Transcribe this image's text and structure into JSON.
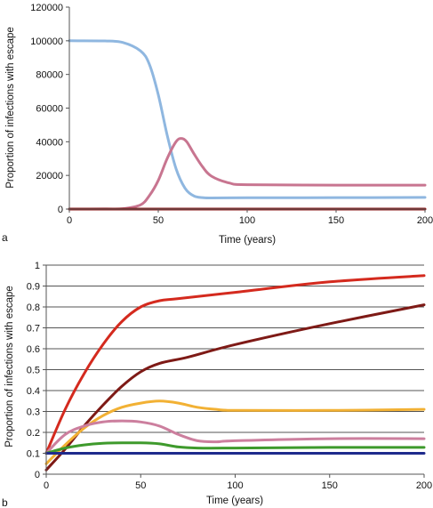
{
  "chart_data": [
    {
      "panel_label": "a",
      "type": "line",
      "xlabel": "Time (years)",
      "ylabel": "Proportion of infections with escape",
      "xlim": [
        0,
        200
      ],
      "ylim": [
        0,
        120000
      ],
      "xticks": [
        "0",
        "50",
        "100",
        "150",
        "200"
      ],
      "yticks": [
        "0",
        "20000",
        "40000",
        "60000",
        "80000",
        "100000",
        "120000"
      ],
      "grid": false,
      "series": [
        {
          "color": "#8fb7e0",
          "points": [
            [
              0,
              100000
            ],
            [
              20,
              99900
            ],
            [
              30,
              99000
            ],
            [
              40,
              94000
            ],
            [
              45,
              86000
            ],
            [
              50,
              68000
            ],
            [
              55,
              44000
            ],
            [
              60,
              24000
            ],
            [
              65,
              12500
            ],
            [
              70,
              7800
            ],
            [
              75,
              6800
            ],
            [
              80,
              6600
            ],
            [
              100,
              6700
            ],
            [
              150,
              6800
            ],
            [
              200,
              6900
            ]
          ]
        },
        {
          "color": "#c87590",
          "points": [
            [
              0,
              0
            ],
            [
              20,
              50
            ],
            [
              30,
              200
            ],
            [
              40,
              2500
            ],
            [
              45,
              8000
            ],
            [
              50,
              17000
            ],
            [
              55,
              30000
            ],
            [
              60,
              40000
            ],
            [
              63,
              42000
            ],
            [
              66,
              40000
            ],
            [
              70,
              33000
            ],
            [
              75,
              25000
            ],
            [
              80,
              19500
            ],
            [
              90,
              15500
            ],
            [
              100,
              14500
            ],
            [
              150,
              14200
            ],
            [
              200,
              14200
            ]
          ]
        },
        {
          "color": "#8b1a1a",
          "points": [
            [
              0,
              0
            ],
            [
              200,
              0
            ]
          ]
        }
      ]
    },
    {
      "panel_label": "b",
      "type": "line",
      "xlabel": "Time (years)",
      "ylabel": "Proportion of infections with escape",
      "xlim": [
        0,
        200
      ],
      "ylim": [
        0,
        1
      ],
      "xticks": [
        "0",
        "50",
        "100",
        "150",
        "200"
      ],
      "yticks": [
        "0",
        "0.1",
        "0.2",
        "0.3",
        "0.4",
        "0.5",
        "0.6",
        "0.7",
        "0.8",
        "0.9",
        "1"
      ],
      "grid": true,
      "series": [
        {
          "color": "#d42a1e",
          "points": [
            [
              0,
              0.1
            ],
            [
              10,
              0.31
            ],
            [
              20,
              0.48
            ],
            [
              30,
              0.62
            ],
            [
              40,
              0.73
            ],
            [
              50,
              0.8
            ],
            [
              60,
              0.83
            ],
            [
              70,
              0.84
            ],
            [
              100,
              0.87
            ],
            [
              150,
              0.92
            ],
            [
              200,
              0.95
            ]
          ]
        },
        {
          "color": "#7e1a16",
          "points": [
            [
              0,
              0.02
            ],
            [
              10,
              0.12
            ],
            [
              20,
              0.23
            ],
            [
              30,
              0.33
            ],
            [
              40,
              0.42
            ],
            [
              50,
              0.49
            ],
            [
              60,
              0.53
            ],
            [
              75,
              0.56
            ],
            [
              100,
              0.62
            ],
            [
              150,
              0.72
            ],
            [
              200,
              0.81
            ]
          ]
        },
        {
          "color": "#f2b134",
          "points": [
            [
              0,
              0.05
            ],
            [
              10,
              0.14
            ],
            [
              20,
              0.22
            ],
            [
              30,
              0.28
            ],
            [
              40,
              0.32
            ],
            [
              50,
              0.34
            ],
            [
              60,
              0.35
            ],
            [
              70,
              0.34
            ],
            [
              80,
              0.32
            ],
            [
              90,
              0.31
            ],
            [
              100,
              0.305
            ],
            [
              150,
              0.305
            ],
            [
              200,
              0.31
            ]
          ]
        },
        {
          "color": "#cc7f9e",
          "points": [
            [
              0,
              0.1
            ],
            [
              10,
              0.19
            ],
            [
              20,
              0.23
            ],
            [
              30,
              0.25
            ],
            [
              40,
              0.255
            ],
            [
              50,
              0.25
            ],
            [
              60,
              0.23
            ],
            [
              70,
              0.19
            ],
            [
              80,
              0.16
            ],
            [
              90,
              0.155
            ],
            [
              100,
              0.16
            ],
            [
              150,
              0.17
            ],
            [
              200,
              0.17
            ]
          ]
        },
        {
          "color": "#3e9a2c",
          "points": [
            [
              0,
              0.1
            ],
            [
              10,
              0.125
            ],
            [
              20,
              0.14
            ],
            [
              30,
              0.148
            ],
            [
              40,
              0.15
            ],
            [
              50,
              0.15
            ],
            [
              60,
              0.145
            ],
            [
              70,
              0.13
            ],
            [
              80,
              0.125
            ],
            [
              100,
              0.125
            ],
            [
              150,
              0.128
            ],
            [
              200,
              0.128
            ]
          ]
        },
        {
          "color": "#1f2b8c",
          "points": [
            [
              0,
              0.1
            ],
            [
              200,
              0.1
            ]
          ]
        }
      ]
    }
  ]
}
